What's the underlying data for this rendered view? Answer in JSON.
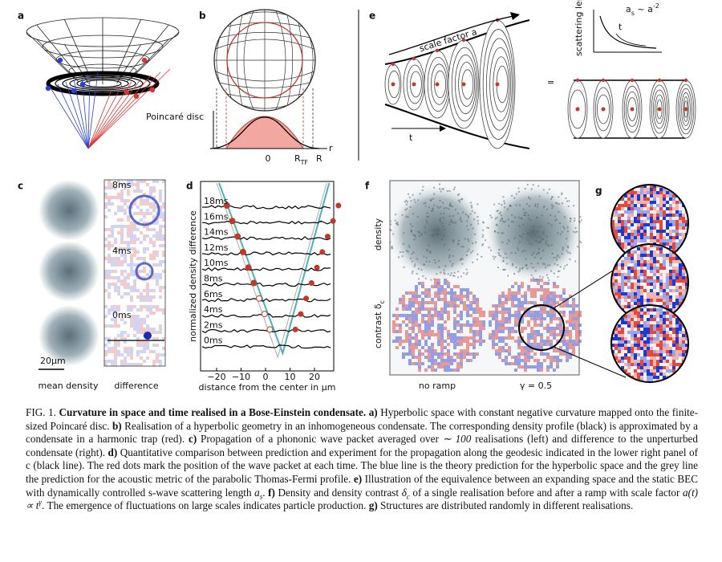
{
  "figure": {
    "a": {
      "letter": "a"
    },
    "b": {
      "letter": "b",
      "disc_label": "Poincaré disc",
      "axis_origin": "0",
      "r_tf": [
        {
          "text": "R",
          "style": "normal"
        },
        {
          "text": "TF",
          "style": "sub"
        }
      ],
      "r_edge": "R",
      "axis_label": "r"
    },
    "c": {
      "letter": "c",
      "times": [
        "8ms",
        "4ms",
        "0ms"
      ],
      "scale_bar": "20μm",
      "left_label": "mean density",
      "right_label": "difference"
    },
    "d": {
      "letter": "d",
      "y_label": "normalized density difference",
      "x_label": "distance from the center in μm",
      "times": [
        "18ms",
        "16ms",
        "14ms",
        "12ms",
        "10ms",
        "8ms",
        "6ms",
        "4ms",
        "2ms",
        "0ms"
      ],
      "x_ticks": [
        "−20",
        "−10",
        "0",
        "10",
        "20"
      ]
    },
    "e": {
      "letter": "e",
      "expansion_label": "scale factor a",
      "time_label": "t",
      "equals": "=",
      "y_label": [
        {
          "text": "scattering length a",
          "style": "normal"
        },
        {
          "text": "s",
          "style": "sub"
        }
      ],
      "relation": [
        {
          "text": "a",
          "style": "normal"
        },
        {
          "text": "s",
          "style": "sub"
        },
        {
          "text": " ~ a",
          "style": "normal"
        },
        {
          "text": "-2",
          "style": "sup"
        }
      ],
      "inset_time": "t"
    },
    "f": {
      "letter": "f",
      "row_top": "density",
      "row_bottom": [
        {
          "text": "contrast δ",
          "style": "normal"
        },
        {
          "text": "c",
          "style": "sub"
        }
      ],
      "col_left": "no ramp",
      "col_right": "γ = 0.5"
    },
    "g": {
      "letter": "g"
    }
  },
  "caption": [
    {
      "text": "FIG. 1.",
      "style": "normal"
    },
    {
      "text": " Curvature in space and time realised in a Bose-Einstein condensate.",
      "style": "bold"
    },
    {
      "text": " a)",
      "style": "bold"
    },
    {
      "text": " Hyperbolic space with constant negative curvature mapped onto the finite-sized Poincaré disc.",
      "style": "normal"
    },
    {
      "text": " b)",
      "style": "bold"
    },
    {
      "text": " Realisation of a hyperbolic geometry in an inhomogeneous condensate. The corresponding density profile (black) is approximated by a condensate in a harmonic trap (red).",
      "style": "normal"
    },
    {
      "text": " c)",
      "style": "bold"
    },
    {
      "text": " Propagation of a phononic wave packet averaged over ",
      "style": "normal"
    },
    {
      "text": "∼ 100",
      "style": "math"
    },
    {
      "text": " realisations (left) and difference to the unperturbed condensate (right).",
      "style": "normal"
    },
    {
      "text": " d)",
      "style": "bold"
    },
    {
      "text": " Quantitative comparison between prediction and experiment for the propagation along the geodesic indicated in the lower right panel of c (black line). The red dots mark the position of the wave packet at each time. The blue line is the theory prediction for the hyperbolic space and the grey line the prediction for the acoustic metric of the parabolic Thomas-Fermi profile.",
      "style": "normal"
    },
    {
      "text": " e)",
      "style": "bold"
    },
    {
      "text": " Illustration of the equivalence between an expanding space and the static BEC with dynamically controlled s-wave scattering length ",
      "style": "normal"
    },
    {
      "text": "a",
      "style": "math"
    },
    {
      "text": "s",
      "style": "sub"
    },
    {
      "text": ".",
      "style": "normal"
    },
    {
      "text": " f)",
      "style": "bold"
    },
    {
      "text": " Density and density contrast ",
      "style": "normal"
    },
    {
      "text": "δ",
      "style": "math"
    },
    {
      "text": "c",
      "style": "sub"
    },
    {
      "text": " of a single realisation before and after a ramp with scale factor ",
      "style": "normal"
    },
    {
      "text": "a(t) ∝ t",
      "style": "math"
    },
    {
      "text": "γ",
      "style": "sup"
    },
    {
      "text": ". The emergence of fluctuations on large scales indicates particle production.",
      "style": "normal"
    },
    {
      "text": " g)",
      "style": "bold"
    },
    {
      "text": " Structures are distributed randomly in different realisations.",
      "style": "normal"
    }
  ]
}
